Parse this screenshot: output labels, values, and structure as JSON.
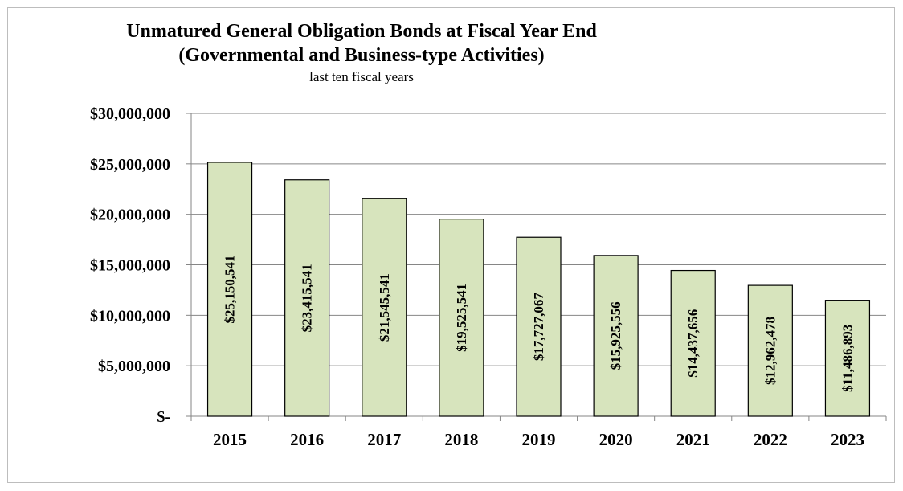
{
  "chart_data": {
    "type": "bar",
    "title": "Unmatured General Obligation Bonds at Fiscal Year End",
    "subtitle": "(Governmental and Business-type Activities)",
    "subtitle2": "last ten fiscal years",
    "xlabel": "",
    "ylabel": "",
    "categories": [
      "2015",
      "2016",
      "2017",
      "2018",
      "2019",
      "2020",
      "2021",
      "2022",
      "2023"
    ],
    "values": [
      25150541,
      23415541,
      21545541,
      19525541,
      17727067,
      15925556,
      14437656,
      12962478,
      11486893
    ],
    "data_labels": [
      "$25,150,541",
      "$23,415,541",
      "$21,545,541",
      "$19,525,541",
      "$17,727,067",
      "$15,925,556",
      "$14,437,656",
      "$12,962,478",
      "$11,486,893"
    ],
    "ylim": [
      0,
      30000000
    ],
    "y_ticks": [
      0,
      5000000,
      10000000,
      15000000,
      20000000,
      25000000,
      30000000
    ],
    "y_tick_labels": [
      "$-",
      "$5,000,000",
      "$10,000,000",
      "$15,000,000",
      "$20,000,000",
      "$25,000,000",
      "$30,000,000"
    ],
    "grid": true,
    "legend": "none",
    "colors": {
      "bar_fill": "#d7e4bd",
      "bar_stroke": "#000000",
      "grid": "#868686"
    }
  }
}
